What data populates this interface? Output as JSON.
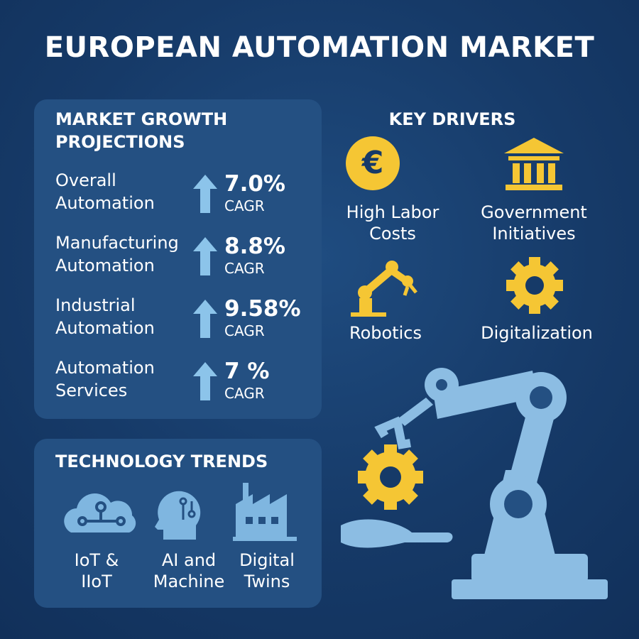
{
  "header": {
    "title": "EUROPEAN AUTOMATION MARKET"
  },
  "growth": {
    "title": "MARKET GROWTH PROJECTIONS",
    "items": [
      {
        "label": "Overall Automation",
        "value": "7.0%",
        "unit": "CAGR"
      },
      {
        "label": "Manufacturing Automation",
        "value": "8.8%",
        "unit": "CAGR"
      },
      {
        "label": "Industrial Automation",
        "value": "9.58%",
        "unit": "CAGR"
      },
      {
        "label": "Automation Services",
        "value": "7 %",
        "unit": "CAGR"
      }
    ]
  },
  "drivers": {
    "title": "KEY DRIVERS",
    "items": [
      "High Labor Costs",
      "Government Initiatives",
      "Robotics",
      "Digitalization"
    ]
  },
  "trends": {
    "title": "TECHNOLOGY TRENDS",
    "items": [
      "IoT & IIoT",
      "AI and Machine",
      "Digital Twins"
    ]
  }
}
